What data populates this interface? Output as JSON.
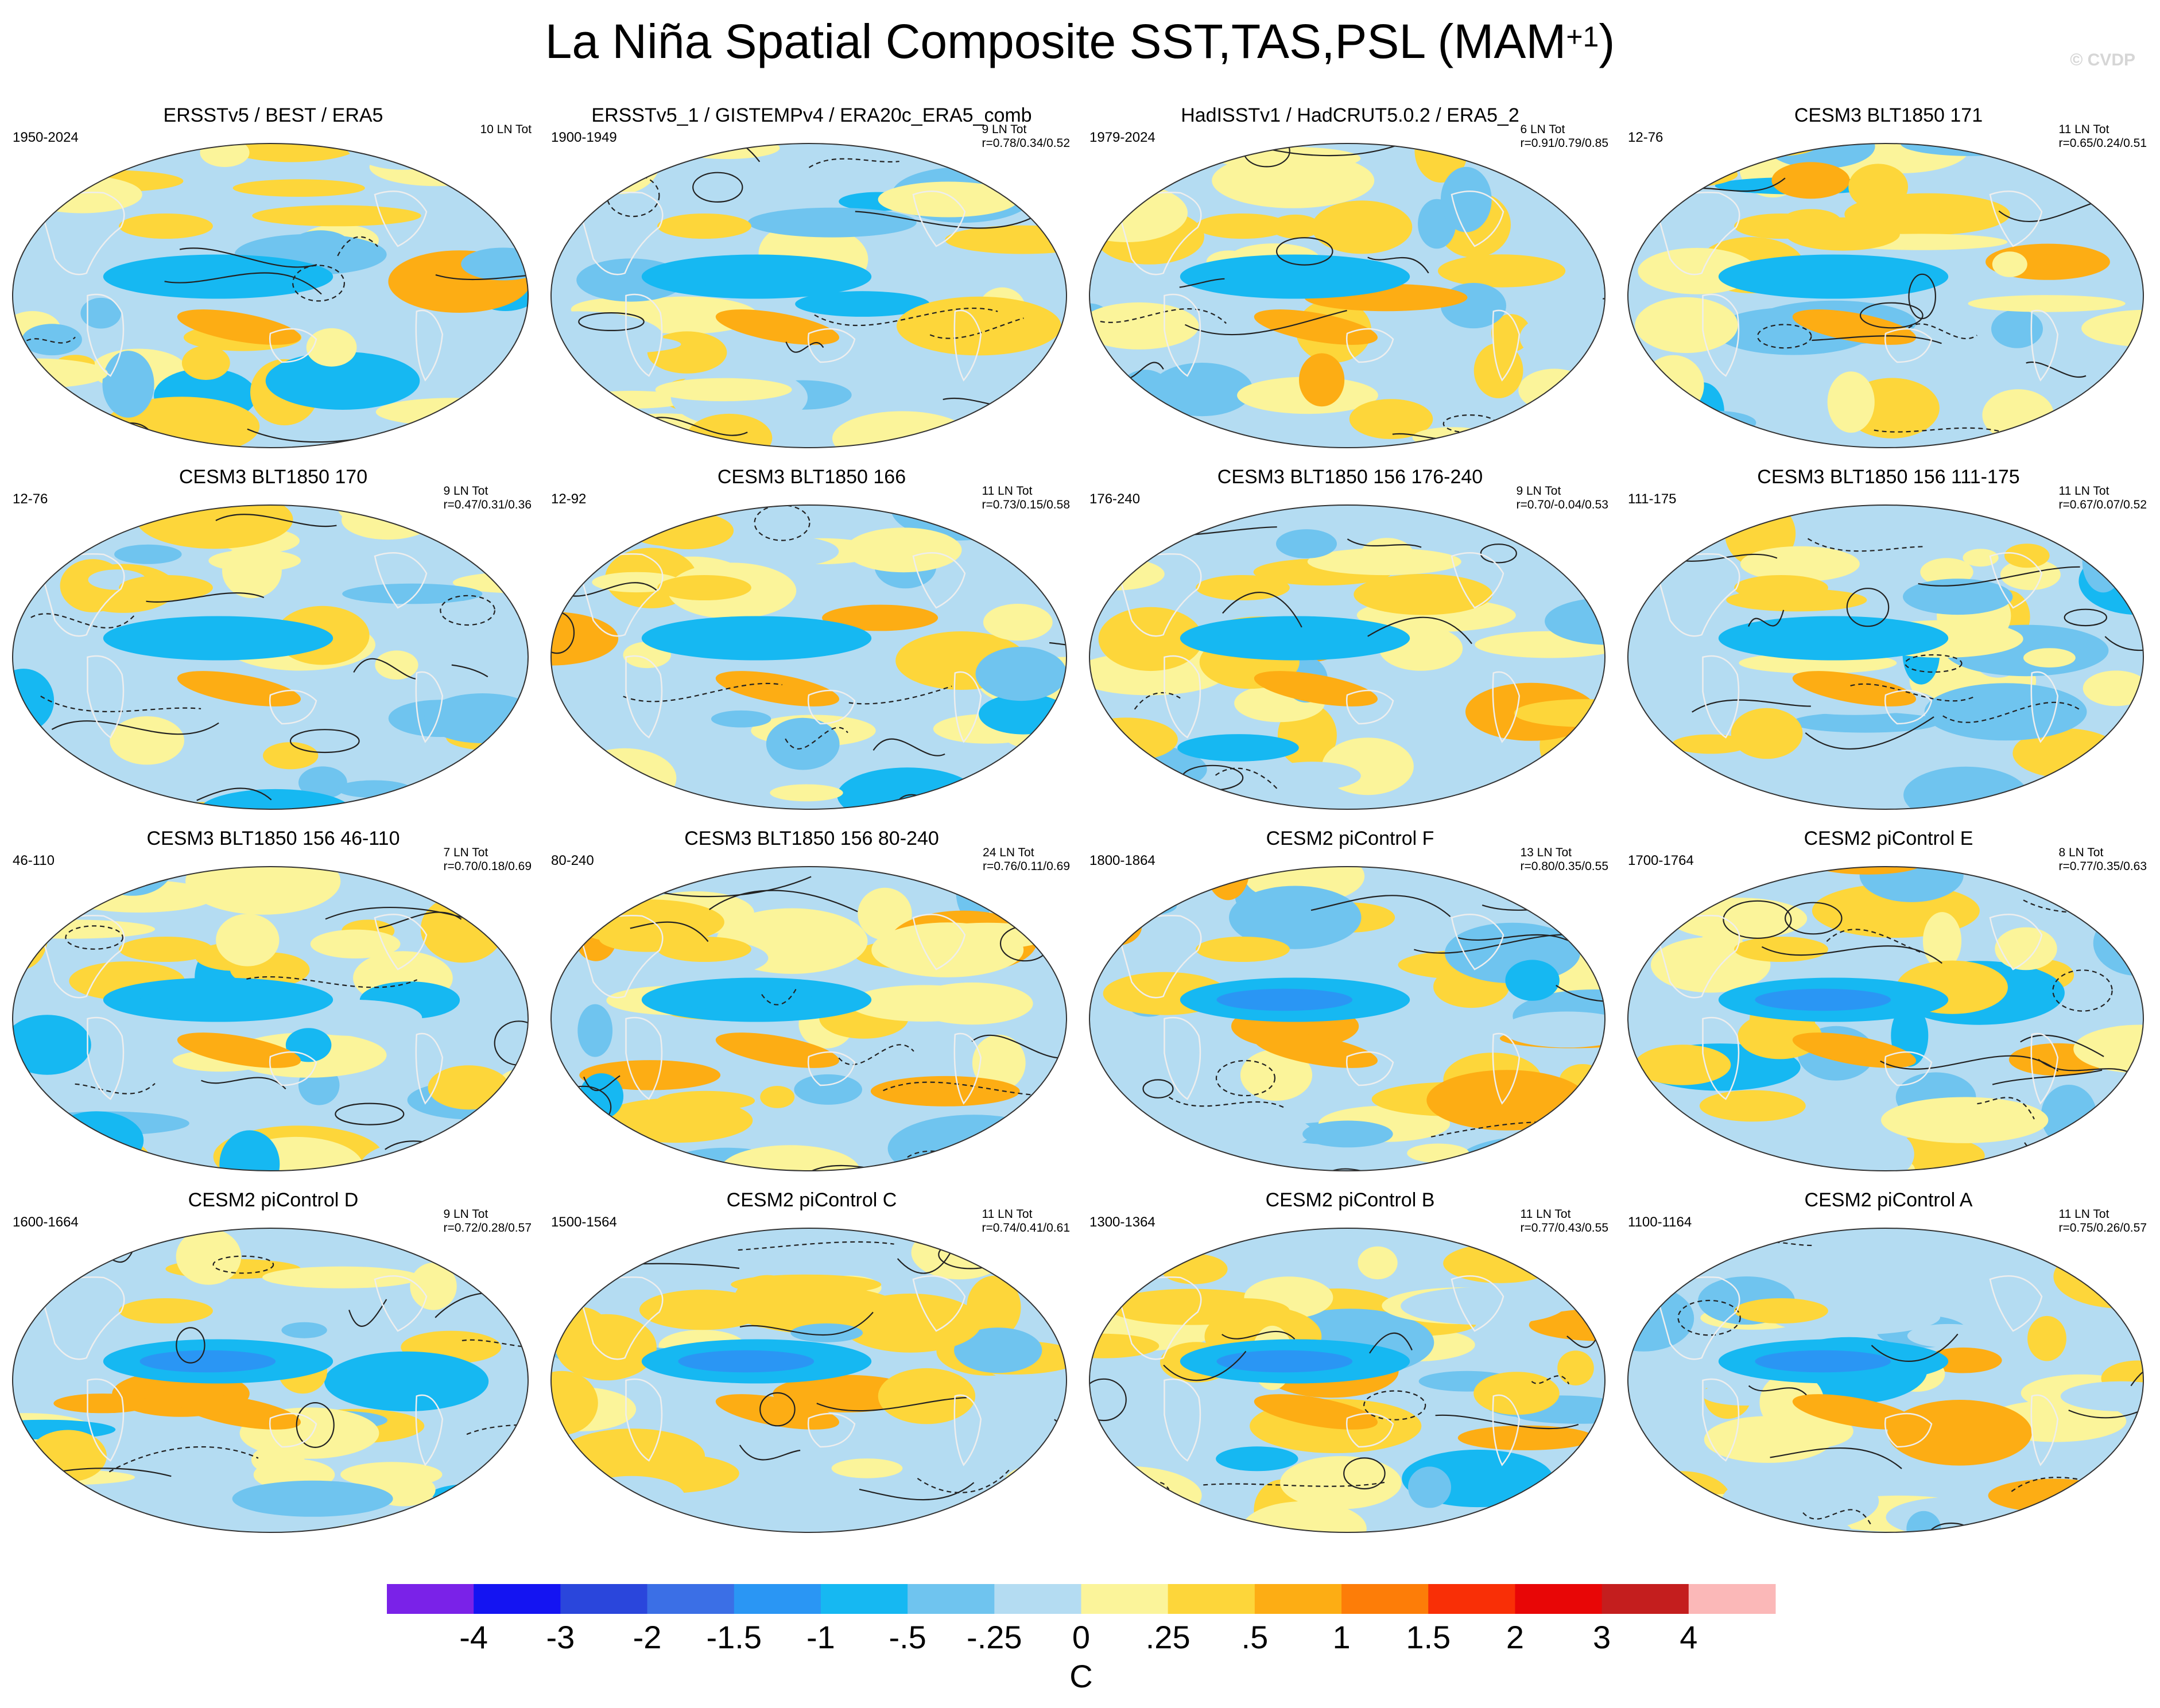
{
  "header": {
    "title": "La Niña Spatial Composite SST,TAS,PSL (MAM",
    "title_superscript": "+1",
    "title_close": ")",
    "watermark": "© CVDP"
  },
  "chart_data": {
    "type": "heatmap",
    "projection": "Robinson (global maps)",
    "variables": [
      "SST",
      "TAS",
      "PSL"
    ],
    "season": "MAM+1",
    "colorbar": {
      "label": "C",
      "tick_labels": [
        "-4",
        "-3",
        "-2",
        "-1.5",
        "-1",
        "-.5",
        "-.25",
        "0",
        ".25",
        ".5",
        "1",
        "1.5",
        "2",
        "3",
        "4"
      ],
      "levels": [
        -4,
        -3,
        -2,
        -1.5,
        -1,
        -0.5,
        -0.25,
        0,
        0.25,
        0.5,
        1,
        1.5,
        2,
        3,
        4
      ],
      "colors": [
        "#7a22e8",
        "#1414f2",
        "#2a46dc",
        "#3b6fe6",
        "#2a96f4",
        "#16b8f2",
        "#6fc4ef",
        "#b4dcf2",
        "#fbf49a",
        "#fdd63a",
        "#fdad14",
        "#fd7d08",
        "#f92f06",
        "#e80606",
        "#c41e1e",
        "#fbb8b8"
      ]
    },
    "panels": [
      {
        "title": "ERSSTv5 / BEST / ERA5",
        "period": "1950-2024",
        "count": "10 LN Tot",
        "r": ""
      },
      {
        "title": "ERSSTv5_1 / GISTEMPv4 / ERA20c_ERA5_comb",
        "period": "1900-1949",
        "count": "9 LN Tot",
        "r": "r=0.78/0.34/0.52"
      },
      {
        "title": "HadISSTv1 / HadCRUT5.0.2 / ERA5_2",
        "period": "1979-2024",
        "count": "6 LN Tot",
        "r": "r=0.91/0.79/0.85"
      },
      {
        "title": "CESM3 BLT1850 171",
        "period": "12-76",
        "count": "11 LN Tot",
        "r": "r=0.65/0.24/0.51"
      },
      {
        "title": "CESM3 BLT1850 170",
        "period": "12-76",
        "count": "9 LN Tot",
        "r": "r=0.47/0.31/0.36"
      },
      {
        "title": "CESM3 BLT1850 166",
        "period": "12-92",
        "count": "11 LN Tot",
        "r": "r=0.73/0.15/0.58"
      },
      {
        "title": "CESM3 BLT1850 156 176-240",
        "period": "176-240",
        "count": "9 LN Tot",
        "r": "r=0.70/-0.04/0.53"
      },
      {
        "title": "CESM3 BLT1850 156 111-175",
        "period": "111-175",
        "count": "11 LN Tot",
        "r": "r=0.67/0.07/0.52"
      },
      {
        "title": "CESM3 BLT1850 156 46-110",
        "period": "46-110",
        "count": "7 LN Tot",
        "r": "r=0.70/0.18/0.69"
      },
      {
        "title": "CESM3 BLT1850 156 80-240",
        "period": "80-240",
        "count": "24 LN Tot",
        "r": "r=0.76/0.11/0.69"
      },
      {
        "title": "CESM2 piControl F",
        "period": "1800-1864",
        "count": "13 LN Tot",
        "r": "r=0.80/0.35/0.55"
      },
      {
        "title": "CESM2 piControl E",
        "period": "1700-1764",
        "count": "8 LN Tot",
        "r": "r=0.77/0.35/0.63"
      },
      {
        "title": "CESM2 piControl D",
        "period": "1600-1664",
        "count": "9 LN Tot",
        "r": "r=0.72/0.28/0.57"
      },
      {
        "title": "CESM2 piControl C",
        "period": "1500-1564",
        "count": "11 LN Tot",
        "r": "r=0.74/0.41/0.61"
      },
      {
        "title": "CESM2 piControl B",
        "period": "1300-1364",
        "count": "11 LN Tot",
        "r": "r=0.77/0.43/0.55"
      },
      {
        "title": "CESM2 piControl A",
        "period": "1100-1164",
        "count": "11 LN Tot",
        "r": "r=0.75/0.26/0.57"
      }
    ]
  }
}
